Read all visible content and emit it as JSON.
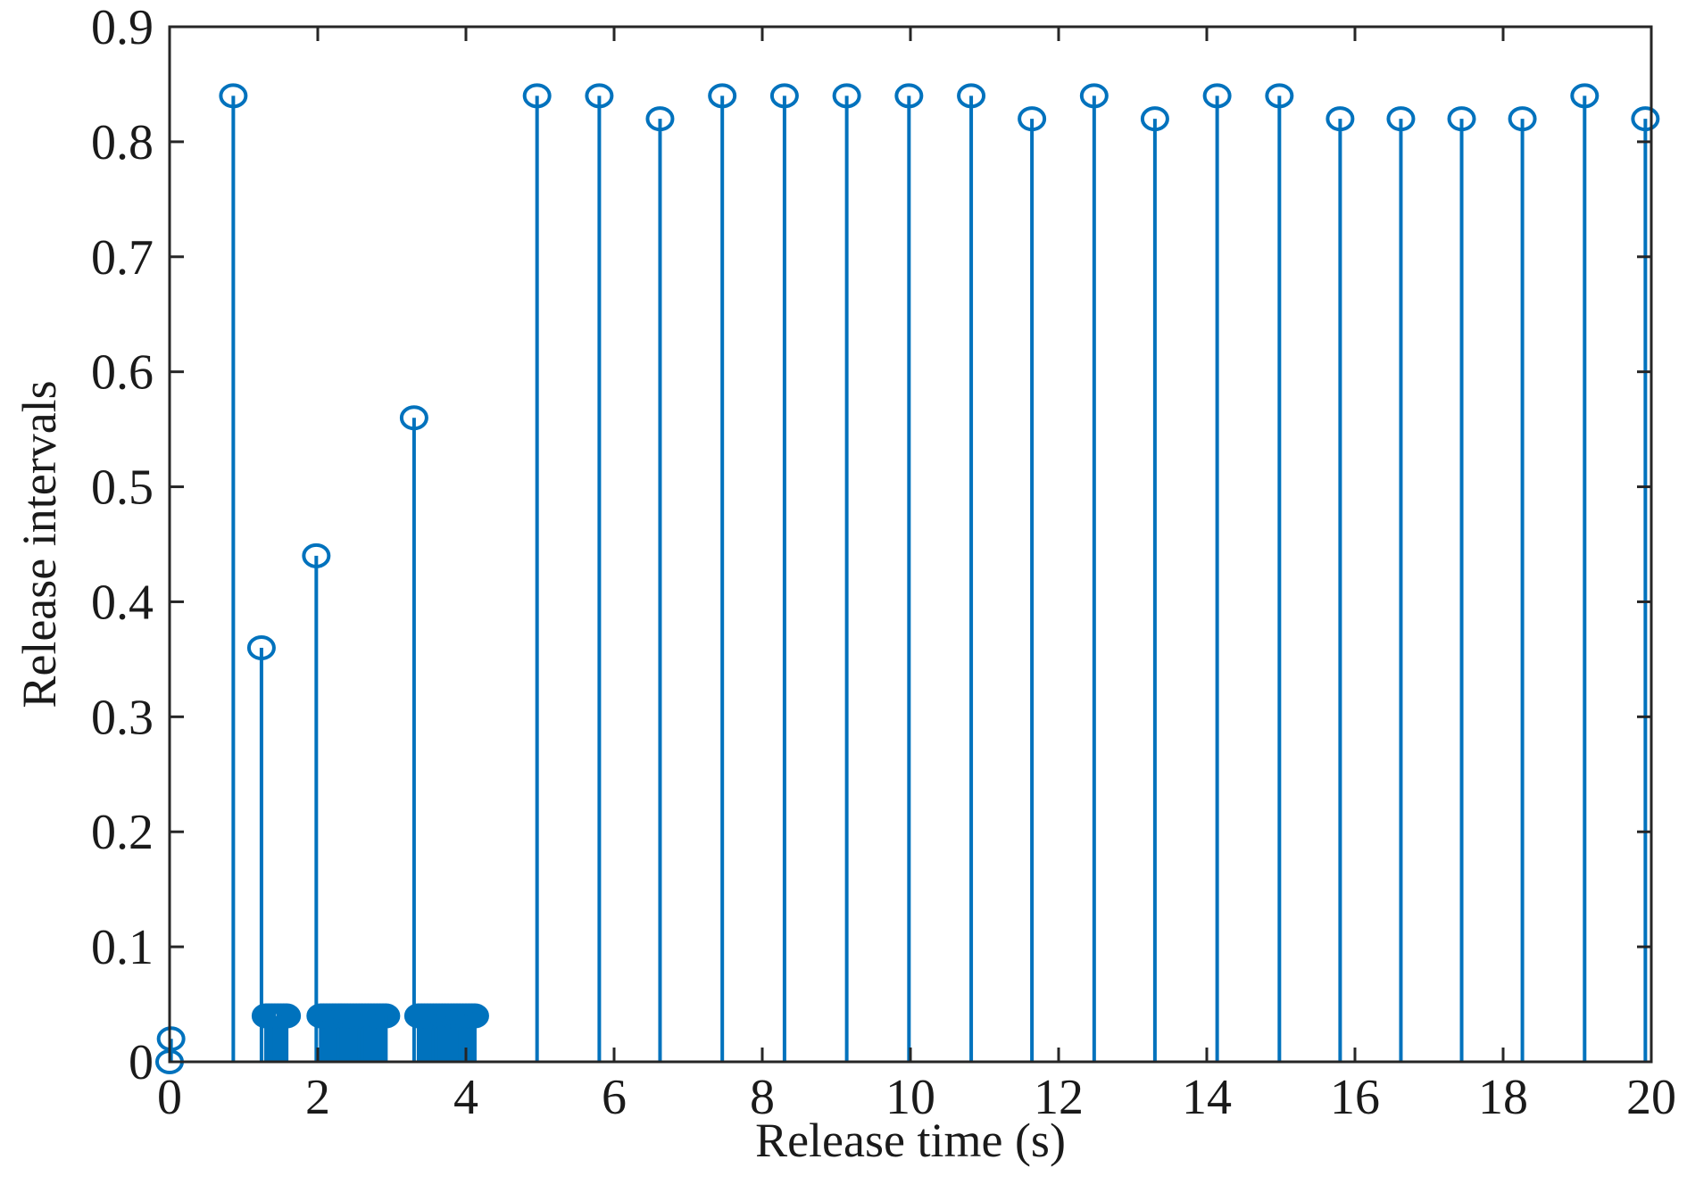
{
  "chart_data": {
    "type": "stem",
    "xlabel": "Release time (s)",
    "ylabel": "Release intervals",
    "xlim": [
      0,
      20
    ],
    "ylim": [
      0,
      0.9
    ],
    "xticks": [
      "0",
      "2",
      "4",
      "6",
      "8",
      "10",
      "12",
      "14",
      "16",
      "18",
      "20"
    ],
    "yticks": [
      "0",
      "0.1",
      "0.2",
      "0.3",
      "0.4",
      "0.5",
      "0.6",
      "0.7",
      "0.8",
      "0.9"
    ],
    "grid": false,
    "box": true,
    "color": "#0072BD",
    "points": [
      {
        "x": 0.0,
        "y": 0.0
      },
      {
        "x": 0.02,
        "y": 0.02
      },
      {
        "x": 0.86,
        "y": 0.84
      },
      {
        "x": 1.24,
        "y": 0.36
      },
      {
        "x": 1.3,
        "y": 0.04
      },
      {
        "x": 1.34,
        "y": 0.04
      },
      {
        "x": 1.38,
        "y": 0.04
      },
      {
        "x": 1.42,
        "y": 0.04
      },
      {
        "x": 1.46,
        "y": 0.04
      },
      {
        "x": 1.5,
        "y": 0.04
      },
      {
        "x": 1.54,
        "y": 0.04
      },
      {
        "x": 1.58,
        "y": 0.04
      },
      {
        "x": 1.98,
        "y": 0.44
      },
      {
        "x": 2.04,
        "y": 0.04
      },
      {
        "x": 2.08,
        "y": 0.04
      },
      {
        "x": 2.12,
        "y": 0.04
      },
      {
        "x": 2.16,
        "y": 0.04
      },
      {
        "x": 2.2,
        "y": 0.04
      },
      {
        "x": 2.24,
        "y": 0.04
      },
      {
        "x": 2.28,
        "y": 0.04
      },
      {
        "x": 2.32,
        "y": 0.04
      },
      {
        "x": 2.36,
        "y": 0.04
      },
      {
        "x": 2.4,
        "y": 0.04
      },
      {
        "x": 2.44,
        "y": 0.04
      },
      {
        "x": 2.48,
        "y": 0.04
      },
      {
        "x": 2.52,
        "y": 0.04
      },
      {
        "x": 2.56,
        "y": 0.04
      },
      {
        "x": 2.6,
        "y": 0.04
      },
      {
        "x": 2.64,
        "y": 0.04
      },
      {
        "x": 2.68,
        "y": 0.04
      },
      {
        "x": 2.72,
        "y": 0.04
      },
      {
        "x": 2.76,
        "y": 0.04
      },
      {
        "x": 2.8,
        "y": 0.04
      },
      {
        "x": 2.84,
        "y": 0.04
      },
      {
        "x": 2.88,
        "y": 0.04
      },
      {
        "x": 2.92,
        "y": 0.04
      },
      {
        "x": 3.3,
        "y": 0.56
      },
      {
        "x": 3.36,
        "y": 0.04
      },
      {
        "x": 3.4,
        "y": 0.04
      },
      {
        "x": 3.44,
        "y": 0.04
      },
      {
        "x": 3.48,
        "y": 0.04
      },
      {
        "x": 3.52,
        "y": 0.04
      },
      {
        "x": 3.56,
        "y": 0.04
      },
      {
        "x": 3.6,
        "y": 0.04
      },
      {
        "x": 3.64,
        "y": 0.04
      },
      {
        "x": 3.68,
        "y": 0.04
      },
      {
        "x": 3.72,
        "y": 0.04
      },
      {
        "x": 3.76,
        "y": 0.04
      },
      {
        "x": 3.8,
        "y": 0.04
      },
      {
        "x": 3.84,
        "y": 0.04
      },
      {
        "x": 3.88,
        "y": 0.04
      },
      {
        "x": 3.92,
        "y": 0.04
      },
      {
        "x": 3.96,
        "y": 0.04
      },
      {
        "x": 4.0,
        "y": 0.04
      },
      {
        "x": 4.04,
        "y": 0.04
      },
      {
        "x": 4.08,
        "y": 0.04
      },
      {
        "x": 4.12,
        "y": 0.04
      },
      {
        "x": 4.96,
        "y": 0.84
      },
      {
        "x": 5.8,
        "y": 0.84
      },
      {
        "x": 6.62,
        "y": 0.82
      },
      {
        "x": 7.46,
        "y": 0.84
      },
      {
        "x": 8.3,
        "y": 0.84
      },
      {
        "x": 9.14,
        "y": 0.84
      },
      {
        "x": 9.98,
        "y": 0.84
      },
      {
        "x": 10.82,
        "y": 0.84
      },
      {
        "x": 11.64,
        "y": 0.82
      },
      {
        "x": 12.48,
        "y": 0.84
      },
      {
        "x": 13.3,
        "y": 0.82
      },
      {
        "x": 14.14,
        "y": 0.84
      },
      {
        "x": 14.98,
        "y": 0.84
      },
      {
        "x": 15.8,
        "y": 0.82
      },
      {
        "x": 16.62,
        "y": 0.82
      },
      {
        "x": 17.44,
        "y": 0.82
      },
      {
        "x": 18.26,
        "y": 0.82
      },
      {
        "x": 19.1,
        "y": 0.84
      },
      {
        "x": 19.92,
        "y": 0.82
      }
    ]
  }
}
